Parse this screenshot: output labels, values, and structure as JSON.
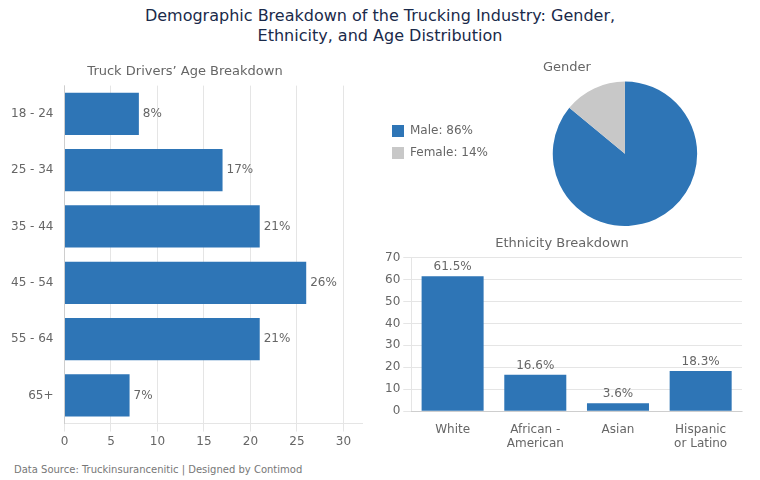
{
  "title": "Demographic Breakdown of the Trucking Industry: Gender,\nEthnicity, and Age Distribution",
  "annotations": [
    "Data Source: Truckinsurancenitic | Designed by Contimod"
  ],
  "chart_data": [
    {
      "type": "bar",
      "orientation": "horizontal",
      "title": "Truck Drivers’ Age Breakdown",
      "categories": [
        "18 - 24",
        "25 - 34",
        "35 - 44",
        "45 - 54",
        "55 - 64",
        "65+"
      ],
      "values": [
        8,
        17,
        21,
        26,
        21,
        7
      ],
      "value_labels": [
        "8%",
        "17%",
        "21%",
        "26%",
        "21%",
        "7%"
      ],
      "data_labels": true,
      "color": "#2e75b6",
      "xlim": [
        0,
        32
      ],
      "xticks": [
        0,
        5,
        10,
        15,
        20,
        25,
        30
      ],
      "grid": true
    },
    {
      "type": "pie",
      "title": "Gender",
      "categories": [
        "Male: 86%",
        "Female: 14%"
      ],
      "values": [
        86,
        14
      ],
      "colors": [
        "#2e75b6",
        "#c8c8c8"
      ],
      "legend": "left"
    },
    {
      "type": "bar",
      "title": "Ethnicity Breakdown",
      "categories": [
        "White",
        "African -\nAmerican",
        "Asian",
        "Hispanic\nor Latino"
      ],
      "values": [
        61.5,
        16.6,
        3.6,
        18.3
      ],
      "value_labels": [
        "61.5%",
        "16.6%",
        "3.6%",
        "18.3%"
      ],
      "data_labels": true,
      "color": "#2e75b6",
      "ylim": [
        0,
        70
      ],
      "yticks": [
        0,
        10,
        20,
        30,
        40,
        50,
        60,
        70
      ],
      "grid": true
    }
  ]
}
